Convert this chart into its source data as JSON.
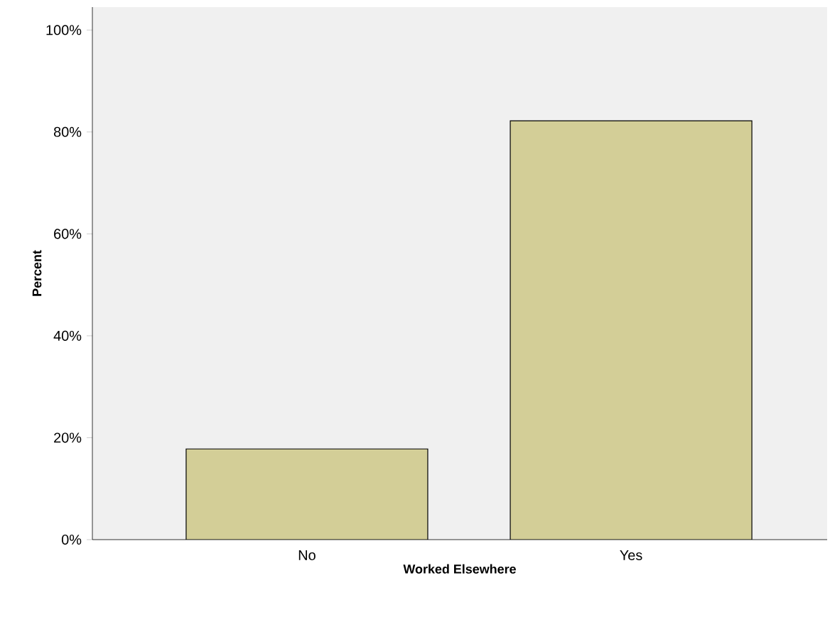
{
  "chart_data": {
    "type": "bar",
    "xlabel": "Worked Elsewhere",
    "ylabel": "Percent",
    "categories": [
      "No",
      "Yes"
    ],
    "values": [
      17.8,
      82.2
    ],
    "color": "#d3ce97",
    "ylim": [
      0,
      104.5
    ],
    "yticks": [
      {
        "value": 0,
        "label": "0%"
      },
      {
        "value": 20,
        "label": "20%"
      },
      {
        "value": 40,
        "label": "40%"
      },
      {
        "value": 60,
        "label": "60%"
      },
      {
        "value": 80,
        "label": "80%"
      },
      {
        "value": 100,
        "label": "100%"
      }
    ],
    "grid": false
  }
}
